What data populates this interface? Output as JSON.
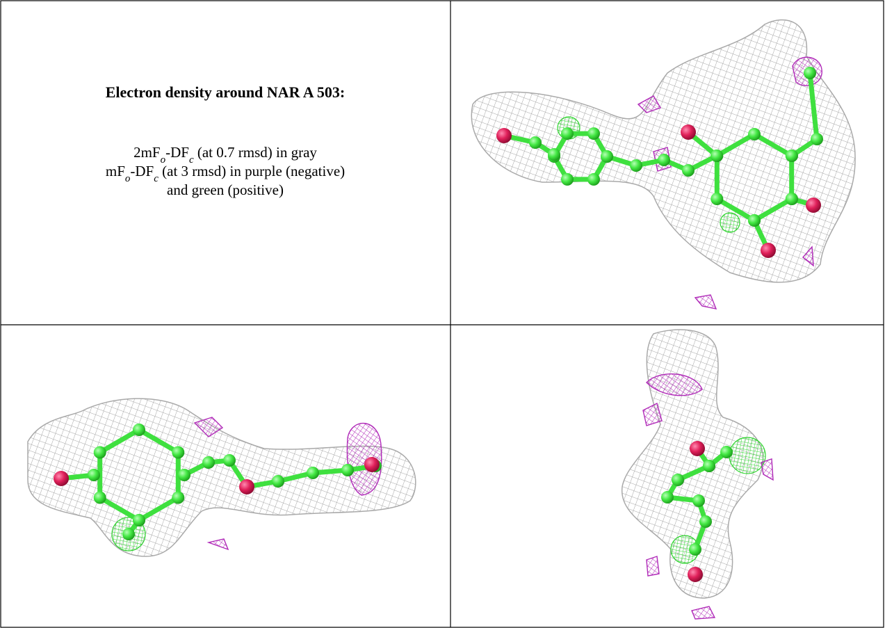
{
  "title": "Electron density around NAR A 503:",
  "legend": [
    [
      "2mF",
      "o",
      "-DF",
      "c",
      " (at 0.7 rmsd) in gray"
    ],
    [
      "mF",
      "o",
      "-DF",
      "c",
      " (at 3 rmsd) in purple (negative)"
    ],
    [
      "and green (positive)"
    ]
  ]
}
